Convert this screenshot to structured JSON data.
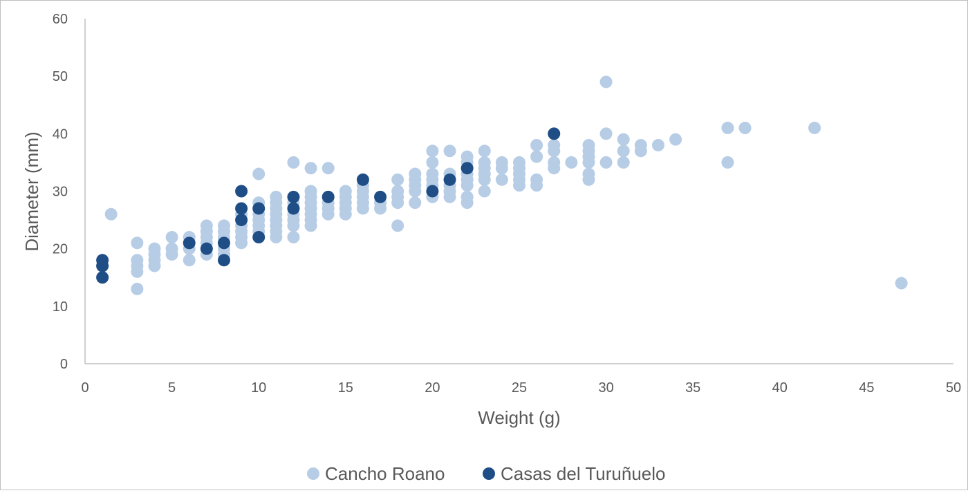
{
  "chart_data": {
    "type": "scatter",
    "title": "",
    "xlabel": "Weight (g)",
    "ylabel": "Diameter (mm)",
    "xlim": [
      0,
      50
    ],
    "ylim": [
      0,
      60
    ],
    "xticks": [
      0,
      5,
      10,
      15,
      20,
      25,
      30,
      35,
      40,
      45,
      50
    ],
    "yticks": [
      0,
      10,
      20,
      30,
      40,
      50,
      60
    ],
    "grid": false,
    "legend_position": "bottom",
    "series": [
      {
        "name": "Cancho Roano",
        "color": "#b7cde6",
        "points": [
          [
            1.5,
            26
          ],
          [
            3,
            21
          ],
          [
            3,
            18
          ],
          [
            3,
            17
          ],
          [
            3,
            16
          ],
          [
            3,
            13
          ],
          [
            4,
            20
          ],
          [
            4,
            19
          ],
          [
            4,
            18
          ],
          [
            4,
            17
          ],
          [
            5,
            22
          ],
          [
            5,
            20
          ],
          [
            5,
            19
          ],
          [
            6,
            22
          ],
          [
            6,
            20
          ],
          [
            6,
            18
          ],
          [
            7,
            24
          ],
          [
            7,
            23
          ],
          [
            7,
            22
          ],
          [
            7,
            21
          ],
          [
            7,
            19
          ],
          [
            8,
            24
          ],
          [
            8,
            23
          ],
          [
            8,
            22
          ],
          [
            8,
            20
          ],
          [
            8,
            19
          ],
          [
            9,
            26
          ],
          [
            9,
            24
          ],
          [
            9,
            23
          ],
          [
            9,
            22
          ],
          [
            9,
            21
          ],
          [
            10,
            33
          ],
          [
            10,
            28
          ],
          [
            10,
            26
          ],
          [
            10,
            25
          ],
          [
            10,
            24
          ],
          [
            10,
            23
          ],
          [
            11,
            29
          ],
          [
            11,
            28
          ],
          [
            11,
            27
          ],
          [
            11,
            26
          ],
          [
            11,
            25
          ],
          [
            11,
            24
          ],
          [
            11,
            23
          ],
          [
            11,
            22
          ],
          [
            12,
            35
          ],
          [
            12,
            28
          ],
          [
            12,
            26
          ],
          [
            12,
            25
          ],
          [
            12,
            24
          ],
          [
            12,
            22
          ],
          [
            13,
            34
          ],
          [
            13,
            30
          ],
          [
            13,
            29
          ],
          [
            13,
            28
          ],
          [
            13,
            27
          ],
          [
            13,
            26
          ],
          [
            13,
            25
          ],
          [
            13,
            24
          ],
          [
            14,
            34
          ],
          [
            14,
            29
          ],
          [
            14,
            28
          ],
          [
            14,
            27
          ],
          [
            14,
            26
          ],
          [
            15,
            30
          ],
          [
            15,
            29
          ],
          [
            15,
            28
          ],
          [
            15,
            27
          ],
          [
            15,
            26
          ],
          [
            16,
            31
          ],
          [
            16,
            30
          ],
          [
            16,
            29
          ],
          [
            16,
            28
          ],
          [
            16,
            27
          ],
          [
            17,
            28
          ],
          [
            17,
            27
          ],
          [
            18,
            32
          ],
          [
            18,
            30
          ],
          [
            18,
            29
          ],
          [
            18,
            28
          ],
          [
            18,
            24
          ],
          [
            19,
            33
          ],
          [
            19,
            32
          ],
          [
            19,
            31
          ],
          [
            19,
            30
          ],
          [
            19,
            28
          ],
          [
            20,
            37
          ],
          [
            20,
            35
          ],
          [
            20,
            33
          ],
          [
            20,
            32
          ],
          [
            20,
            31
          ],
          [
            20,
            29
          ],
          [
            21,
            37
          ],
          [
            21,
            33
          ],
          [
            21,
            31
          ],
          [
            21,
            30
          ],
          [
            21,
            29
          ],
          [
            22,
            36
          ],
          [
            22,
            35
          ],
          [
            22,
            33
          ],
          [
            22,
            32
          ],
          [
            22,
            31
          ],
          [
            22,
            29
          ],
          [
            22,
            28
          ],
          [
            23,
            37
          ],
          [
            23,
            35
          ],
          [
            23,
            34
          ],
          [
            23,
            33
          ],
          [
            23,
            32
          ],
          [
            23,
            30
          ],
          [
            24,
            35
          ],
          [
            24,
            34
          ],
          [
            24,
            32
          ],
          [
            25,
            35
          ],
          [
            25,
            34
          ],
          [
            25,
            33
          ],
          [
            25,
            32
          ],
          [
            25,
            31
          ],
          [
            26,
            38
          ],
          [
            26,
            36
          ],
          [
            26,
            32
          ],
          [
            26,
            31
          ],
          [
            27,
            38
          ],
          [
            27,
            37
          ],
          [
            27,
            35
          ],
          [
            27,
            34
          ],
          [
            28,
            35
          ],
          [
            29,
            38
          ],
          [
            29,
            37
          ],
          [
            29,
            36
          ],
          [
            29,
            35
          ],
          [
            29,
            33
          ],
          [
            29,
            32
          ],
          [
            30,
            49
          ],
          [
            30,
            40
          ],
          [
            30,
            35
          ],
          [
            31,
            39
          ],
          [
            31,
            37
          ],
          [
            31,
            35
          ],
          [
            32,
            38
          ],
          [
            32,
            37
          ],
          [
            33,
            38
          ],
          [
            34,
            39
          ],
          [
            37,
            41
          ],
          [
            37,
            35
          ],
          [
            38,
            41
          ],
          [
            42,
            41
          ],
          [
            47,
            14
          ]
        ]
      },
      {
        "name": "Casas del Turuñuelo",
        "color": "#1f4e87",
        "points": [
          [
            1,
            18
          ],
          [
            1,
            17
          ],
          [
            1,
            15
          ],
          [
            6,
            21
          ],
          [
            7,
            20
          ],
          [
            8,
            21
          ],
          [
            8,
            18
          ],
          [
            9,
            30
          ],
          [
            9,
            27
          ],
          [
            9,
            25
          ],
          [
            10,
            27
          ],
          [
            10,
            22
          ],
          [
            12,
            29
          ],
          [
            12,
            27
          ],
          [
            14,
            29
          ],
          [
            16,
            32
          ],
          [
            17,
            29
          ],
          [
            20,
            30
          ],
          [
            21,
            32
          ],
          [
            22,
            34
          ],
          [
            27,
            40
          ]
        ]
      }
    ]
  }
}
